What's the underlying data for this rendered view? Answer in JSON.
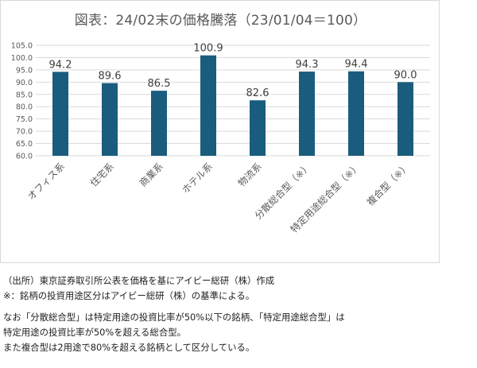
{
  "chart_data": {
    "type": "bar",
    "title": "図表：24/02末の価格騰落（23/01/04＝100）",
    "categories": [
      "オフィス系",
      "住宅系",
      "商業系",
      "ホテル系",
      "物流系",
      "分散総合型（※）",
      "特定用途総合型（※）",
      "複合型（※）"
    ],
    "values": [
      94.2,
      89.6,
      86.5,
      100.9,
      82.6,
      94.3,
      94.4,
      90.0
    ],
    "value_labels": [
      "94.2",
      "89.6",
      "86.5",
      "100.9",
      "82.6",
      "94.3",
      "94.4",
      "90.0"
    ],
    "ylim": [
      60,
      105
    ],
    "yticks": [
      "60.0",
      "65.0",
      "70.0",
      "75.0",
      "80.0",
      "85.0",
      "90.0",
      "95.0",
      "100.0",
      "105.0"
    ],
    "grid": true,
    "bar_color": "#1a5c7d"
  },
  "notes": {
    "line1": "（出所）東京証券取引所公表を価格を基にアイビー総研（株）作成",
    "line2": "※：銘柄の投資用途区分はアイビー総研（株）の基準による。",
    "line3": "なお「分散総合型」は特定用途の投資比率が50%以下の銘柄、「特定用途総合型」は",
    "line4": "特定用途の投資比率が50%を超える総合型。",
    "line5": "また複合型は2用途で80%を超える銘柄として区分している。"
  }
}
